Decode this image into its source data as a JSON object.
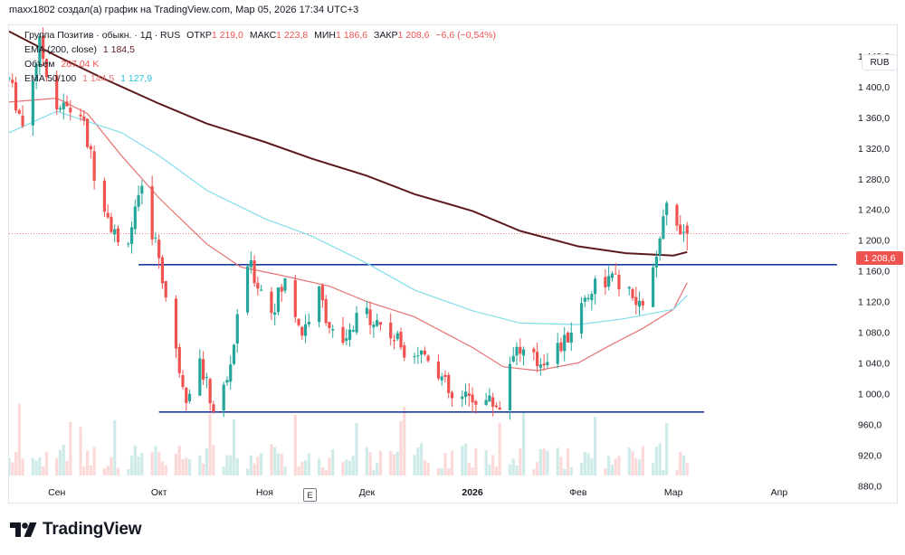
{
  "header": {
    "caption": "maxx1802 создал(а) график на TradingView.com, Мар 05, 2026 17:34 UTC+3"
  },
  "legend": {
    "main": {
      "symbol": "Группа Позитив · обыкн. · 1Д · RUS",
      "open_label": "ОТКР",
      "open": "1 219,0",
      "high_label": "МАКС",
      "high": "1 223,8",
      "low_label": "МИН",
      "low": "1 186,6",
      "close_label": "ЗАКР",
      "close": "1 208,6",
      "change": "−6,6 (−0,54%)"
    },
    "ema200": {
      "label": "EMA (200, close)",
      "value": "1 184,5"
    },
    "volume": {
      "label": "Объем",
      "value": "267,04 K"
    },
    "ema50_100": {
      "label": "EMA 50/100",
      "value50": "1 144,5",
      "value100": "1 127,9"
    }
  },
  "currency": "RUB",
  "last_price_label": "1 208,6",
  "events_badge": "E",
  "brand": {
    "name": "TradingView"
  },
  "colors": {
    "up": "#26a69a",
    "down": "#ef5350",
    "ema200": "#5d1a1d",
    "ema50": "#e57373",
    "ema100": "#80deea",
    "hline": "#1a3a9c"
  },
  "chart_data": {
    "type": "candlestick",
    "title": "Группа Позитив · обыкн. · 1Д · RUS",
    "currency": "RUB",
    "y_axis": {
      "ticks": [
        880,
        920,
        960,
        1000,
        1040,
        1080,
        1120,
        1160,
        1200,
        1240,
        1280,
        1320,
        1360,
        1400,
        1440
      ],
      "tick_labels": [
        "880,0",
        "920,0",
        "960,0",
        "1 000,0",
        "1 040,0",
        "1 080,0",
        "1 120,0",
        "1 160,0",
        "1 200,0",
        "1 240,0",
        "1 280,0",
        "1 320,0",
        "1 360,0",
        "1 400,0",
        "1 440,0"
      ],
      "range": [
        858,
        1480
      ]
    },
    "x_axis": {
      "labels": [
        "Сен",
        "Окт",
        "Ноя",
        "Дек",
        "2026",
        "Фев",
        "Мар",
        "Апр"
      ],
      "label_dates": [
        "2025-09-01",
        "2025-10-01",
        "2025-11-01",
        "2025-12-01",
        "2026-01-01",
        "2026-02-01",
        "2026-03-01",
        "2026-04-01"
      ],
      "range": [
        "2025-08-18",
        "2026-04-22"
      ]
    },
    "series": [
      {
        "name": "EMA (200, close)",
        "points": [
          [
            "2025-08-18",
            1472
          ],
          [
            "2025-09-01",
            1440
          ],
          [
            "2025-09-15",
            1410
          ],
          [
            "2025-10-01",
            1378
          ],
          [
            "2025-10-15",
            1352
          ],
          [
            "2025-11-01",
            1328
          ],
          [
            "2025-11-15",
            1306
          ],
          [
            "2025-12-01",
            1284
          ],
          [
            "2025-12-15",
            1260
          ],
          [
            "2026-01-01",
            1238
          ],
          [
            "2026-01-15",
            1212
          ],
          [
            "2026-02-01",
            1192
          ],
          [
            "2026-02-15",
            1183
          ],
          [
            "2026-03-01",
            1180
          ],
          [
            "2026-03-05",
            1184.5
          ]
        ]
      },
      {
        "name": "EMA 50",
        "points": [
          [
            "2025-08-18",
            1380
          ],
          [
            "2025-09-01",
            1385
          ],
          [
            "2025-09-10",
            1365
          ],
          [
            "2025-09-20",
            1310
          ],
          [
            "2025-10-01",
            1255
          ],
          [
            "2025-10-15",
            1195
          ],
          [
            "2025-10-25",
            1165
          ],
          [
            "2025-11-05",
            1155
          ],
          [
            "2025-11-20",
            1140
          ],
          [
            "2025-12-01",
            1120
          ],
          [
            "2025-12-15",
            1100
          ],
          [
            "2026-01-01",
            1060
          ],
          [
            "2026-01-10",
            1035
          ],
          [
            "2026-01-20",
            1030
          ],
          [
            "2026-02-01",
            1040
          ],
          [
            "2026-02-10",
            1062
          ],
          [
            "2026-02-20",
            1085
          ],
          [
            "2026-03-01",
            1110
          ],
          [
            "2026-03-05",
            1144.5
          ]
        ]
      },
      {
        "name": "EMA 100",
        "points": [
          [
            "2025-08-18",
            1340
          ],
          [
            "2025-09-01",
            1368
          ],
          [
            "2025-09-20",
            1340
          ],
          [
            "2025-10-01",
            1310
          ],
          [
            "2025-10-15",
            1265
          ],
          [
            "2025-11-01",
            1228
          ],
          [
            "2025-11-15",
            1205
          ],
          [
            "2025-12-01",
            1170
          ],
          [
            "2025-12-15",
            1135
          ],
          [
            "2026-01-01",
            1108
          ],
          [
            "2026-01-15",
            1092
          ],
          [
            "2026-02-01",
            1090
          ],
          [
            "2026-02-15",
            1098
          ],
          [
            "2026-03-01",
            1110
          ],
          [
            "2026-03-05",
            1127.9
          ]
        ]
      }
    ],
    "candle_path": [
      [
        "2025-08-18",
        1410
      ],
      [
        "2025-08-22",
        1350
      ],
      [
        "2025-08-27",
        1455
      ],
      [
        "2025-09-01",
        1375
      ],
      [
        "2025-09-08",
        1365
      ],
      [
        "2025-09-12",
        1290
      ],
      [
        "2025-09-20",
        1180
      ],
      [
        "2025-09-26",
        1260
      ],
      [
        "2025-10-01",
        1180
      ],
      [
        "2025-10-05",
        1070
      ],
      [
        "2025-10-09",
        1000
      ],
      [
        "2025-10-13",
        1040
      ],
      [
        "2025-10-17",
        980
      ],
      [
        "2025-10-21",
        1015
      ],
      [
        "2025-10-27",
        1170
      ],
      [
        "2025-11-03",
        1110
      ],
      [
        "2025-11-07",
        1145
      ],
      [
        "2025-11-12",
        1080
      ],
      [
        "2025-11-17",
        1130
      ],
      [
        "2025-11-23",
        1050
      ],
      [
        "2025-11-30",
        1110
      ],
      [
        "2025-12-05",
        1090
      ],
      [
        "2025-12-12",
        1060
      ],
      [
        "2025-12-20",
        1050
      ],
      [
        "2025-12-26",
        990
      ],
      [
        "2026-01-02",
        995
      ],
      [
        "2026-01-09",
        985
      ],
      [
        "2026-01-13",
        1060
      ],
      [
        "2026-01-20",
        1040
      ],
      [
        "2026-01-28",
        1065
      ],
      [
        "2026-02-03",
        1125
      ],
      [
        "2026-02-07",
        1150
      ],
      [
        "2026-02-13",
        1145
      ],
      [
        "2026-02-19",
        1110
      ],
      [
        "2026-02-24",
        1170
      ],
      [
        "2026-02-27",
        1245
      ],
      [
        "2026-03-03",
        1220
      ],
      [
        "2026-03-05",
        1208.6
      ]
    ],
    "horizontal_lines": [
      {
        "value": 1168,
        "from": "2025-09-25",
        "to": "2026-04-18"
      },
      {
        "value": 976,
        "from": "2025-10-01",
        "to": "2026-03-10"
      }
    ],
    "last_ohlc": {
      "open": 1219.0,
      "high": 1223.8,
      "low": 1186.6,
      "close": 1208.6
    },
    "last_price": 1208.6,
    "volume_last": "267,04 K",
    "grid": false
  }
}
